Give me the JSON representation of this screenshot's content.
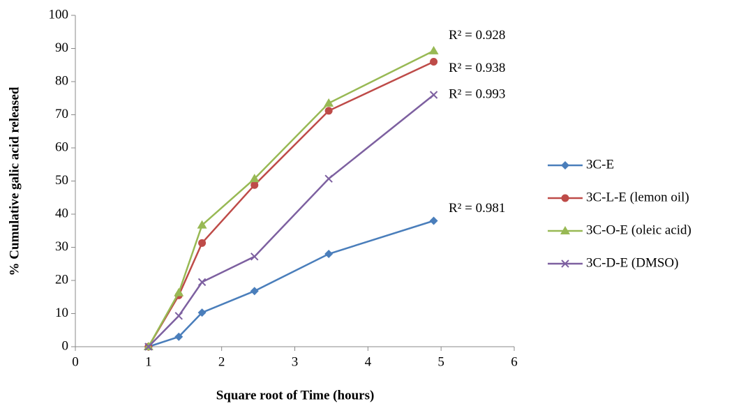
{
  "chart_data": {
    "type": "line",
    "x_label": "Square root of Time (hours)",
    "y_label": "% Cumulative galic acid released",
    "xlim": [
      0,
      6
    ],
    "xticks": [
      0,
      1,
      2,
      3,
      4,
      5,
      6
    ],
    "ylim": [
      0,
      100
    ],
    "yticks": [
      0,
      10,
      20,
      30,
      40,
      50,
      60,
      70,
      80,
      90,
      100
    ],
    "grid": false,
    "legend": "right",
    "x": [
      1,
      1.414,
      1.732,
      2.449,
      3.464,
      4.899
    ],
    "series": [
      {
        "name": "3C-E",
        "color": "#4a7ebb",
        "marker": "diamond",
        "values": [
          0,
          3,
          10.3,
          16.8,
          28,
          38
        ],
        "annotation": "R² = 0.981"
      },
      {
        "name": "3C-L-E (lemon oil)",
        "color": "#be4b48",
        "marker": "circle",
        "values": [
          0,
          15.5,
          31.3,
          48.8,
          71.2,
          86
        ],
        "annotation": "R² = 0.938"
      },
      {
        "name": "3C-O-E (oleic acid)",
        "color": "#98b954",
        "marker": "triangle",
        "values": [
          0,
          16.3,
          36.7,
          50.7,
          73.5,
          89.3
        ],
        "annotation": "R² = 0.928"
      },
      {
        "name": "3C-D-E (DMSO)",
        "color": "#7d60a0",
        "marker": "x",
        "values": [
          0,
          9.3,
          19.5,
          27.2,
          50.7,
          76
        ],
        "annotation": "R² = 0.993"
      }
    ]
  }
}
